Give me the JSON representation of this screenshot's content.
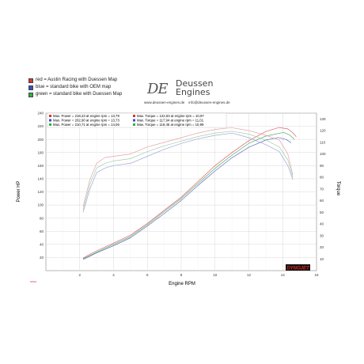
{
  "legend_lines": [
    {
      "swatch": "#e03030",
      "text": "red = Austin Racing with Duessen Map"
    },
    {
      "swatch": "#3050d0",
      "text": "blue = standard bike with OEM map"
    },
    {
      "swatch": "#30b040",
      "text": "green = standard bike with Duessen Map"
    }
  ],
  "brand": {
    "mark": "DE",
    "name_line1": "Deussen",
    "name_line2": "Engines",
    "web": "www.deussen-engines.de",
    "email": "info@deussen-engines.de"
  },
  "inner_legend": [
    {
      "power": "Max. Power = 218,23 at engine rpm = 13,79",
      "torque": "Max. Torque = 122,63 at engine rpm = 10,97"
    },
    {
      "power": "Max. Power = 202,90 at engine rpm = 13,73",
      "torque": "Max. Torque = 117,94 at engine rpm = 11,01"
    },
    {
      "power": "Max. Power = 210,71 at engine rpm = 14,06",
      "torque": "Max. Torque = 119,45 at engine rpm = 10,99"
    }
  ],
  "dynojet_label": "DYNOJET",
  "chart_data": {
    "type": "line",
    "xlabel": "Engine RPM",
    "ylabel": "Power HP",
    "y2label": "Torque",
    "xlim": [
      0,
      16
    ],
    "ylim": [
      0,
      240
    ],
    "y2lim": [
      0,
      135
    ],
    "x_ticks": [
      "2",
      "4",
      "6",
      "8",
      "10",
      "12",
      "14",
      "16"
    ],
    "y_ticks": [
      "20",
      "40",
      "60",
      "80",
      "100",
      "120",
      "140",
      "160",
      "180",
      "200",
      "220",
      "240"
    ],
    "y2_ticks": [
      "10",
      "20",
      "30",
      "40",
      "50",
      "60",
      "70",
      "80",
      "90",
      "100",
      "110",
      "120",
      "130"
    ],
    "grid": true,
    "series": [
      {
        "name": "red = Austin Racing with Duessen Map",
        "color": "#e06070",
        "kind": "power",
        "x": [
          2.2,
          2.6,
          3,
          4,
          5,
          6,
          7,
          8,
          9,
          10,
          11,
          12,
          13,
          13.79,
          14.3,
          14.6,
          14.8
        ],
        "y": [
          19,
          25,
          30,
          42,
          54,
          72,
          92,
          112,
          136,
          160,
          180,
          198,
          212,
          218.2,
          216,
          210,
          204
        ]
      },
      {
        "name": "blue = standard bike with OEM map",
        "color": "#6070c0",
        "kind": "power",
        "x": [
          2.2,
          2.6,
          3,
          4,
          5,
          6,
          7,
          8,
          9,
          10,
          11,
          12,
          13,
          13.73,
          14.2,
          14.5
        ],
        "y": [
          17,
          22,
          27,
          38,
          50,
          68,
          87,
          107,
          130,
          152,
          172,
          188,
          199,
          202.9,
          200,
          195
        ]
      },
      {
        "name": "green = standard bike with Duessen Map",
        "color": "#50b060",
        "kind": "power",
        "x": [
          2.2,
          2.6,
          3,
          4,
          5,
          6,
          7,
          8,
          9,
          10,
          11,
          12,
          13,
          14.06,
          14.4,
          14.7
        ],
        "y": [
          18,
          23,
          28,
          40,
          52,
          70,
          90,
          110,
          133,
          156,
          176,
          194,
          205,
          210.7,
          207,
          200
        ]
      },
      {
        "name": "red = Austin Racing with Duessen Map",
        "color": "#e8a0a8",
        "kind": "torque",
        "x": [
          2.2,
          2.6,
          3,
          3.5,
          4,
          5,
          6,
          7,
          8,
          9,
          10,
          10.97,
          12,
          13,
          13.8,
          14.3,
          14.6
        ],
        "y": [
          55,
          78,
          92,
          97,
          98,
          100,
          106,
          110,
          114,
          118,
          121,
          122.6,
          120,
          116,
          112,
          100,
          82
        ]
      },
      {
        "name": "blue = standard bike with OEM map",
        "color": "#a0a8d8",
        "kind": "torque",
        "x": [
          2.2,
          2.6,
          3,
          3.5,
          4,
          5,
          6,
          7,
          8,
          9,
          10,
          11.01,
          12,
          13,
          13.8,
          14.3,
          14.6
        ],
        "y": [
          50,
          70,
          84,
          88,
          90,
          92,
          98,
          104,
          109,
          113,
          116,
          117.9,
          114,
          108,
          102,
          90,
          78
        ]
      },
      {
        "name": "green = standard bike with Duessen Map",
        "color": "#a0d0a8",
        "kind": "torque",
        "x": [
          2.2,
          2.6,
          3,
          3.5,
          4,
          5,
          6,
          7,
          8,
          9,
          10,
          10.99,
          12,
          13,
          13.8,
          14.3,
          14.6
        ],
        "y": [
          52,
          74,
          88,
          92,
          94,
          96,
          102,
          107,
          111,
          115,
          118,
          119.5,
          117,
          112,
          106,
          95,
          80
        ]
      }
    ]
  }
}
